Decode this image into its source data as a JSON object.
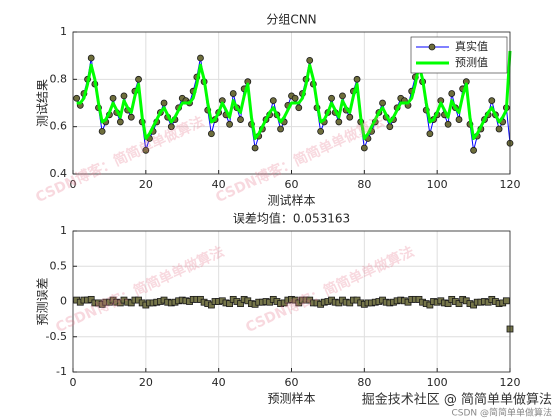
{
  "chart_data": [
    {
      "type": "line",
      "title": "分组CNN",
      "xlabel": "测试样本",
      "ylabel": "测试结果",
      "x": [
        1,
        2,
        3,
        4,
        5,
        6,
        7,
        8,
        9,
        10,
        11,
        12,
        13,
        14,
        15,
        16,
        17,
        18,
        19,
        20,
        21,
        22,
        23,
        24,
        25,
        26,
        27,
        28,
        29,
        30,
        31,
        32,
        33,
        34,
        35,
        36,
        37,
        38,
        39,
        40,
        41,
        42,
        43,
        44,
        45,
        46,
        47,
        48,
        49,
        50,
        51,
        52,
        53,
        54,
        55,
        56,
        57,
        58,
        59,
        60,
        61,
        62,
        63,
        64,
        65,
        66,
        67,
        68,
        69,
        70,
        71,
        72,
        73,
        74,
        75,
        76,
        77,
        78,
        79,
        80,
        81,
        82,
        83,
        84,
        85,
        86,
        87,
        88,
        89,
        90,
        91,
        92,
        93,
        94,
        95,
        96,
        97,
        98,
        99,
        100,
        101,
        102,
        103,
        104,
        105,
        106,
        107,
        108,
        109,
        110,
        111,
        112,
        113,
        114,
        115,
        116,
        117,
        118,
        119,
        120
      ],
      "series": [
        {
          "name": "真实值",
          "color": "#0000ff",
          "line_width": 1,
          "marker": "circle",
          "marker_color": "#6e6e3c",
          "values": [
            0.72,
            0.69,
            0.74,
            0.8,
            0.89,
            0.78,
            0.68,
            0.58,
            0.62,
            0.65,
            0.72,
            0.66,
            0.62,
            0.73,
            0.67,
            0.64,
            0.75,
            0.8,
            0.62,
            0.5,
            0.55,
            0.58,
            0.62,
            0.66,
            0.7,
            0.64,
            0.6,
            0.63,
            0.68,
            0.72,
            0.71,
            0.7,
            0.75,
            0.81,
            0.89,
            0.79,
            0.67,
            0.57,
            0.63,
            0.66,
            0.71,
            0.65,
            0.61,
            0.74,
            0.68,
            0.63,
            0.76,
            0.79,
            0.61,
            0.51,
            0.56,
            0.59,
            0.63,
            0.65,
            0.71,
            0.65,
            0.59,
            0.62,
            0.69,
            0.73,
            0.72,
            0.68,
            0.74,
            0.8,
            0.88,
            0.78,
            0.68,
            0.58,
            0.62,
            0.66,
            0.72,
            0.66,
            0.62,
            0.73,
            0.67,
            0.64,
            0.75,
            0.8,
            0.62,
            0.51,
            0.55,
            0.58,
            0.62,
            0.66,
            0.7,
            0.64,
            0.6,
            0.63,
            0.68,
            0.72,
            0.71,
            0.69,
            0.75,
            0.81,
            0.89,
            0.79,
            0.67,
            0.57,
            0.63,
            0.65,
            0.71,
            0.65,
            0.61,
            0.74,
            0.68,
            0.63,
            0.76,
            0.79,
            0.61,
            0.5,
            0.56,
            0.59,
            0.63,
            0.65,
            0.71,
            0.65,
            0.59,
            0.62,
            0.68,
            0.53
          ]
        },
        {
          "name": "预测值",
          "color": "#00ff00",
          "line_width": 3,
          "values": [
            0.7,
            0.7,
            0.72,
            0.78,
            0.86,
            0.8,
            0.7,
            0.62,
            0.63,
            0.66,
            0.7,
            0.67,
            0.64,
            0.71,
            0.68,
            0.66,
            0.73,
            0.78,
            0.64,
            0.55,
            0.57,
            0.6,
            0.63,
            0.66,
            0.68,
            0.65,
            0.62,
            0.64,
            0.67,
            0.7,
            0.7,
            0.7,
            0.72,
            0.78,
            0.86,
            0.8,
            0.7,
            0.62,
            0.63,
            0.66,
            0.7,
            0.67,
            0.64,
            0.71,
            0.68,
            0.66,
            0.73,
            0.78,
            0.64,
            0.55,
            0.57,
            0.6,
            0.63,
            0.66,
            0.68,
            0.65,
            0.62,
            0.64,
            0.67,
            0.7,
            0.7,
            0.7,
            0.72,
            0.78,
            0.86,
            0.8,
            0.7,
            0.62,
            0.63,
            0.66,
            0.7,
            0.67,
            0.64,
            0.71,
            0.68,
            0.66,
            0.73,
            0.78,
            0.64,
            0.55,
            0.57,
            0.6,
            0.63,
            0.66,
            0.68,
            0.65,
            0.62,
            0.64,
            0.67,
            0.7,
            0.7,
            0.7,
            0.72,
            0.78,
            0.86,
            0.8,
            0.7,
            0.62,
            0.63,
            0.66,
            0.7,
            0.67,
            0.64,
            0.71,
            0.68,
            0.66,
            0.73,
            0.78,
            0.64,
            0.55,
            0.57,
            0.6,
            0.63,
            0.66,
            0.68,
            0.65,
            0.62,
            0.64,
            0.67,
            0.92
          ]
        }
      ],
      "xlim": [
        0,
        120
      ],
      "xticks": [
        0,
        20,
        40,
        60,
        80,
        100,
        120
      ],
      "ylim": [
        0.4,
        1
      ],
      "yticks": [
        0.4,
        0.6,
        0.8,
        1
      ],
      "grid": true,
      "legend": "northeast"
    },
    {
      "type": "scatter",
      "title": "误差均值：0.053163",
      "xlabel": "预测样本",
      "ylabel": "预测误差",
      "x": [
        1,
        2,
        3,
        4,
        5,
        6,
        7,
        8,
        9,
        10,
        11,
        12,
        13,
        14,
        15,
        16,
        17,
        18,
        19,
        20,
        21,
        22,
        23,
        24,
        25,
        26,
        27,
        28,
        29,
        30,
        31,
        32,
        33,
        34,
        35,
        36,
        37,
        38,
        39,
        40,
        41,
        42,
        43,
        44,
        45,
        46,
        47,
        48,
        49,
        50,
        51,
        52,
        53,
        54,
        55,
        56,
        57,
        58,
        59,
        60,
        61,
        62,
        63,
        64,
        65,
        66,
        67,
        68,
        69,
        70,
        71,
        72,
        73,
        74,
        75,
        76,
        77,
        78,
        79,
        80,
        81,
        82,
        83,
        84,
        85,
        86,
        87,
        88,
        89,
        90,
        91,
        92,
        93,
        94,
        95,
        96,
        97,
        98,
        99,
        100,
        101,
        102,
        103,
        104,
        105,
        106,
        107,
        108,
        109,
        110,
        111,
        112,
        113,
        114,
        115,
        116,
        117,
        118,
        119,
        120
      ],
      "series": [
        {
          "color": "#1a1a1a",
          "marker": "square",
          "marker_color": "#76764a",
          "values": [
            0.02,
            -0.01,
            0.02,
            0.02,
            0.03,
            -0.02,
            -0.02,
            -0.04,
            -0.01,
            -0.01,
            0.02,
            -0.01,
            -0.02,
            0.02,
            -0.01,
            -0.02,
            0.02,
            0.02,
            -0.02,
            -0.05,
            -0.02,
            -0.02,
            -0.01,
            0,
            0.02,
            -0.01,
            -0.02,
            -0.01,
            0.01,
            0.02,
            0.01,
            0,
            0.03,
            0.03,
            0.03,
            -0.01,
            -0.03,
            -0.05,
            0,
            0,
            0.01,
            -0.02,
            -0.03,
            0.03,
            0,
            -0.03,
            0.03,
            0.01,
            -0.03,
            -0.04,
            -0.01,
            -0.01,
            0,
            -0.01,
            0.03,
            0,
            -0.03,
            -0.02,
            0.02,
            0.03,
            0.02,
            -0.02,
            0.02,
            0.02,
            0.02,
            -0.02,
            -0.02,
            -0.04,
            -0.01,
            0,
            0.02,
            -0.01,
            -0.02,
            0.02,
            -0.01,
            -0.02,
            0.02,
            0.02,
            -0.02,
            -0.04,
            -0.02,
            -0.02,
            -0.01,
            0,
            0.02,
            -0.01,
            -0.02,
            -0.01,
            0.01,
            0.02,
            0.01,
            -0.01,
            0.03,
            0.03,
            0.03,
            -0.01,
            -0.03,
            -0.05,
            0,
            -0.01,
            0.01,
            -0.02,
            -0.03,
            0.03,
            0,
            -0.03,
            0.03,
            0.01,
            -0.03,
            -0.05,
            -0.01,
            -0.01,
            0,
            -0.01,
            0.03,
            0,
            -0.03,
            -0.02,
            0.01,
            -0.39
          ]
        }
      ],
      "xlim": [
        0,
        120
      ],
      "xticks": [
        0,
        20,
        40,
        60,
        80,
        100,
        120
      ],
      "ylim": [
        -1,
        1
      ],
      "yticks": [
        -1,
        -0.5,
        0,
        0.5,
        1
      ],
      "grid": true
    }
  ],
  "watermarks": [
    "CSDN博客：简简单单做算法",
    "掘金技术社区 @ 简简单单做算法",
    "CSDN @简简单单做算法"
  ]
}
